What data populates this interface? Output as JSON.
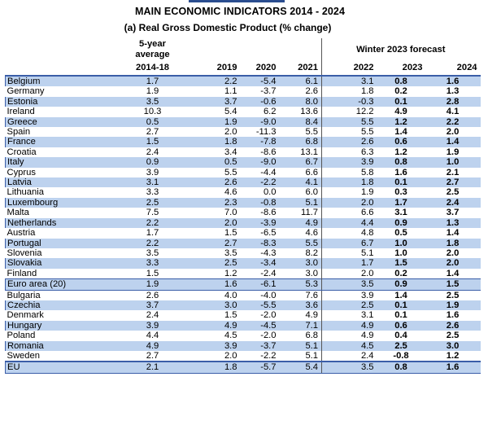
{
  "title": "MAIN ECONOMIC INDICATORS 2014 - 2024",
  "subtitle": "(a) Real Gross Domestic Product (% change)",
  "header": {
    "avg_line1": "5-year",
    "avg_line2": "average",
    "forecast_label": "Winter 2023 forecast",
    "columns": [
      "2014-18",
      "2019",
      "2020",
      "2021",
      "2022",
      "2023",
      "2024"
    ]
  },
  "rows": [
    {
      "name": "Belgium",
      "shaded": true,
      "v": [
        "1.7",
        "2.2",
        "-5.4",
        "6.1",
        "3.1",
        "0.8",
        "1.6"
      ]
    },
    {
      "name": "Germany",
      "shaded": false,
      "v": [
        "1.9",
        "1.1",
        "-3.7",
        "2.6",
        "1.8",
        "0.2",
        "1.3"
      ]
    },
    {
      "name": "Estonia",
      "shaded": true,
      "v": [
        "3.5",
        "3.7",
        "-0.6",
        "8.0",
        "-0.3",
        "0.1",
        "2.8"
      ]
    },
    {
      "name": "Ireland",
      "shaded": false,
      "v": [
        "10.3",
        "5.4",
        "6.2",
        "13.6",
        "12.2",
        "4.9",
        "4.1"
      ]
    },
    {
      "name": "Greece",
      "shaded": true,
      "v": [
        "0.5",
        "1.9",
        "-9.0",
        "8.4",
        "5.5",
        "1.2",
        "2.2"
      ]
    },
    {
      "name": "Spain",
      "shaded": false,
      "v": [
        "2.7",
        "2.0",
        "-11.3",
        "5.5",
        "5.5",
        "1.4",
        "2.0"
      ]
    },
    {
      "name": "France",
      "shaded": true,
      "v": [
        "1.5",
        "1.8",
        "-7.8",
        "6.8",
        "2.6",
        "0.6",
        "1.4"
      ]
    },
    {
      "name": "Croatia",
      "shaded": false,
      "v": [
        "2.4",
        "3.4",
        "-8.6",
        "13.1",
        "6.3",
        "1.2",
        "1.9"
      ]
    },
    {
      "name": "Italy",
      "shaded": true,
      "v": [
        "0.9",
        "0.5",
        "-9.0",
        "6.7",
        "3.9",
        "0.8",
        "1.0"
      ]
    },
    {
      "name": "Cyprus",
      "shaded": false,
      "v": [
        "3.9",
        "5.5",
        "-4.4",
        "6.6",
        "5.8",
        "1.6",
        "2.1"
      ]
    },
    {
      "name": "Latvia",
      "shaded": true,
      "v": [
        "3.1",
        "2.6",
        "-2.2",
        "4.1",
        "1.8",
        "0.1",
        "2.7"
      ]
    },
    {
      "name": "Lithuania",
      "shaded": false,
      "v": [
        "3.3",
        "4.6",
        "0.0",
        "6.0",
        "1.9",
        "0.3",
        "2.5"
      ]
    },
    {
      "name": "Luxembourg",
      "shaded": true,
      "v": [
        "2.5",
        "2.3",
        "-0.8",
        "5.1",
        "2.0",
        "1.7",
        "2.4"
      ]
    },
    {
      "name": "Malta",
      "shaded": false,
      "v": [
        "7.5",
        "7.0",
        "-8.6",
        "11.7",
        "6.6",
        "3.1",
        "3.7"
      ]
    },
    {
      "name": "Netherlands",
      "shaded": true,
      "v": [
        "2.2",
        "2.0",
        "-3.9",
        "4.9",
        "4.4",
        "0.9",
        "1.3"
      ]
    },
    {
      "name": "Austria",
      "shaded": false,
      "v": [
        "1.7",
        "1.5",
        "-6.5",
        "4.6",
        "4.8",
        "0.5",
        "1.4"
      ]
    },
    {
      "name": "Portugal",
      "shaded": true,
      "v": [
        "2.2",
        "2.7",
        "-8.3",
        "5.5",
        "6.7",
        "1.0",
        "1.8"
      ]
    },
    {
      "name": "Slovenia",
      "shaded": false,
      "v": [
        "3.5",
        "3.5",
        "-4.3",
        "8.2",
        "5.1",
        "1.0",
        "2.0"
      ]
    },
    {
      "name": "Slovakia",
      "shaded": true,
      "v": [
        "3.3",
        "2.5",
        "-3.4",
        "3.0",
        "1.7",
        "1.5",
        "2.0"
      ]
    },
    {
      "name": "Finland",
      "shaded": false,
      "v": [
        "1.5",
        "1.2",
        "-2.4",
        "3.0",
        "2.0",
        "0.2",
        "1.4"
      ]
    },
    {
      "name": "Euro area (20)",
      "shaded": true,
      "ea": true,
      "v": [
        "1.9",
        "1.6",
        "-6.1",
        "5.3",
        "3.5",
        "0.9",
        "1.5"
      ]
    },
    {
      "name": "Bulgaria",
      "shaded": false,
      "v": [
        "2.6",
        "4.0",
        "-4.0",
        "7.6",
        "3.9",
        "1.4",
        "2.5"
      ]
    },
    {
      "name": "Czechia",
      "shaded": true,
      "v": [
        "3.7",
        "3.0",
        "-5.5",
        "3.6",
        "2.5",
        "0.1",
        "1.9"
      ]
    },
    {
      "name": "Denmark",
      "shaded": false,
      "v": [
        "2.4",
        "1.5",
        "-2.0",
        "4.9",
        "3.1",
        "0.1",
        "1.6"
      ]
    },
    {
      "name": "Hungary",
      "shaded": true,
      "v": [
        "3.9",
        "4.9",
        "-4.5",
        "7.1",
        "4.9",
        "0.6",
        "2.6"
      ]
    },
    {
      "name": "Poland",
      "shaded": false,
      "v": [
        "4.4",
        "4.5",
        "-2.0",
        "6.8",
        "4.9",
        "0.4",
        "2.5"
      ]
    },
    {
      "name": "Romania",
      "shaded": true,
      "v": [
        "4.9",
        "3.9",
        "-3.7",
        "5.1",
        "4.5",
        "2.5",
        "3.0"
      ]
    },
    {
      "name": "Sweden",
      "shaded": false,
      "v": [
        "2.7",
        "2.0",
        "-2.2",
        "5.1",
        "2.4",
        "-0.8",
        "1.2"
      ]
    },
    {
      "name": "EU",
      "shaded": true,
      "eu": true,
      "v": [
        "2.1",
        "1.8",
        "-5.7",
        "5.4",
        "3.5",
        "0.8",
        "1.6"
      ]
    }
  ]
}
